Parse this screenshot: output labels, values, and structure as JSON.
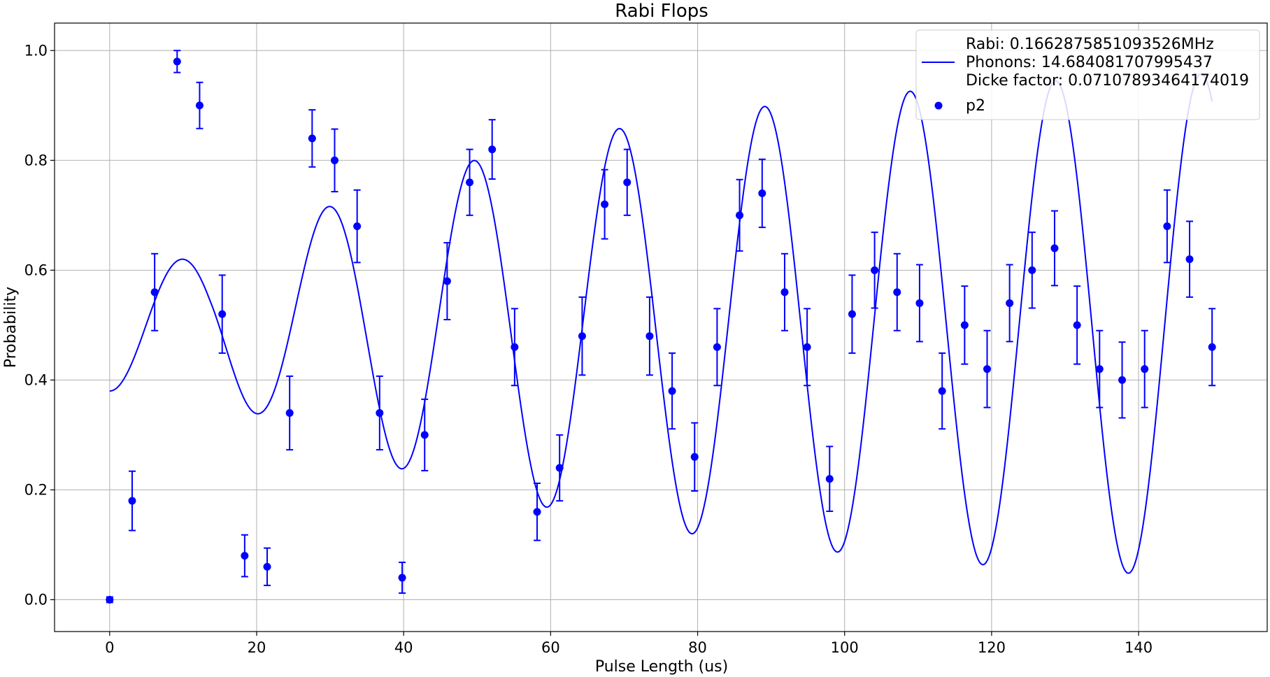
{
  "chart_data": {
    "type": "scatter",
    "title": "Rabi Flops",
    "xlabel": "Pulse Length (us)",
    "ylabel": "Probability",
    "xlim": [
      -7.5,
      157.5
    ],
    "ylim": [
      -0.058,
      1.05
    ],
    "xticks": [
      0,
      20,
      40,
      60,
      80,
      100,
      120,
      140
    ],
    "yticks": [
      0.0,
      0.2,
      0.4,
      0.6,
      0.8,
      1.0
    ],
    "xtick_labels": [
      "0",
      "20",
      "40",
      "60",
      "80",
      "100",
      "120",
      "140"
    ],
    "ytick_labels": [
      "0.0",
      "0.2",
      "0.4",
      "0.6",
      "0.8",
      "1.0"
    ],
    "grid": true,
    "legend_position": "top-right",
    "color": "#0000ff",
    "fit": {
      "legend_lines": [
        "Rabi: 0.1662875851093526MHz",
        "Phonons: 14.684081707995437",
        "Dicke factor: 0.07107893464174019"
      ],
      "rabi_mhz": 0.1662875851093526,
      "phonons": 14.684081707995437,
      "dicke_factor": 0.07107893464174019,
      "x_range": [
        0,
        150
      ]
    },
    "series": [
      {
        "name": "p2",
        "x": [
          0,
          3.06,
          6.12,
          9.18,
          12.24,
          15.31,
          18.37,
          21.43,
          24.49,
          27.55,
          30.61,
          33.67,
          36.73,
          39.8,
          42.86,
          45.92,
          48.98,
          52.04,
          55.1,
          58.16,
          61.22,
          64.29,
          67.35,
          70.41,
          73.47,
          76.53,
          79.59,
          82.65,
          85.71,
          88.78,
          91.84,
          94.9,
          97.96,
          101.02,
          104.08,
          107.14,
          110.2,
          113.27,
          116.33,
          119.39,
          122.45,
          125.51,
          128.57,
          131.63,
          134.69,
          137.76,
          140.82,
          143.88,
          146.94,
          150.0
        ],
        "y": [
          0.0,
          0.18,
          0.56,
          0.98,
          0.9,
          0.52,
          0.08,
          0.06,
          0.34,
          0.84,
          0.8,
          0.68,
          0.34,
          0.04,
          0.3,
          0.58,
          0.76,
          0.82,
          0.46,
          0.16,
          0.24,
          0.48,
          0.72,
          0.76,
          0.48,
          0.38,
          0.26,
          0.46,
          0.7,
          0.74,
          0.56,
          0.46,
          0.22,
          0.52,
          0.6,
          0.56,
          0.54,
          0.38,
          0.5,
          0.42,
          0.54,
          0.6,
          0.64,
          0.5,
          0.42,
          0.4,
          0.42,
          0.68,
          0.62,
          0.46
        ],
        "err": [
          0.005,
          0.054,
          0.07,
          0.02,
          0.042,
          0.071,
          0.038,
          0.034,
          0.067,
          0.052,
          0.057,
          0.066,
          0.067,
          0.028,
          0.065,
          0.07,
          0.06,
          0.054,
          0.07,
          0.052,
          0.06,
          0.071,
          0.063,
          0.06,
          0.071,
          0.069,
          0.062,
          0.07,
          0.065,
          0.062,
          0.07,
          0.07,
          0.059,
          0.071,
          0.069,
          0.07,
          0.07,
          0.069,
          0.071,
          0.07,
          0.07,
          0.069,
          0.068,
          0.071,
          0.07,
          0.069,
          0.07,
          0.066,
          0.069,
          0.07
        ]
      }
    ]
  }
}
